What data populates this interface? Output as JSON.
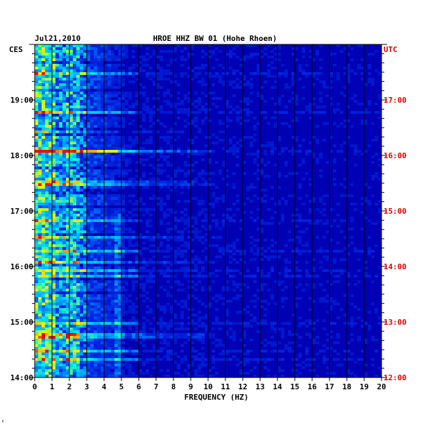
{
  "chart_data": {
    "type": "heatmap",
    "header": {
      "date": "Jul21,2010",
      "title": "HROE HHZ BW 01 (Hohe Rhoen)",
      "left_zone": "CES",
      "right_zone": "UTC"
    },
    "xlabel": "FREQUENCY (HZ)",
    "x_range": [
      0,
      20
    ],
    "x_ticks": [
      "0",
      "1",
      "2",
      "3",
      "4",
      "5",
      "6",
      "7",
      "8",
      "9",
      "10",
      "11",
      "12",
      "13",
      "14",
      "15",
      "16",
      "17",
      "18",
      "19",
      "20"
    ],
    "left_time_ticks": [
      "19:00",
      "18:00",
      "17:00",
      "16:00",
      "15:00",
      "14:00"
    ],
    "right_time_ticks": [
      "17:00",
      "16:00",
      "15:00",
      "14:00",
      "13:00",
      "12:00"
    ],
    "time_range_utc": [
      "12:00",
      "18:00"
    ],
    "colors": {
      "background": "#0000b4",
      "low": "#0010c8",
      "mid": "#00c8ff",
      "high": "#ffff00",
      "peak": "#ff0000",
      "utc_label": "#e00000"
    },
    "corner_mark": "ᴷ"
  }
}
